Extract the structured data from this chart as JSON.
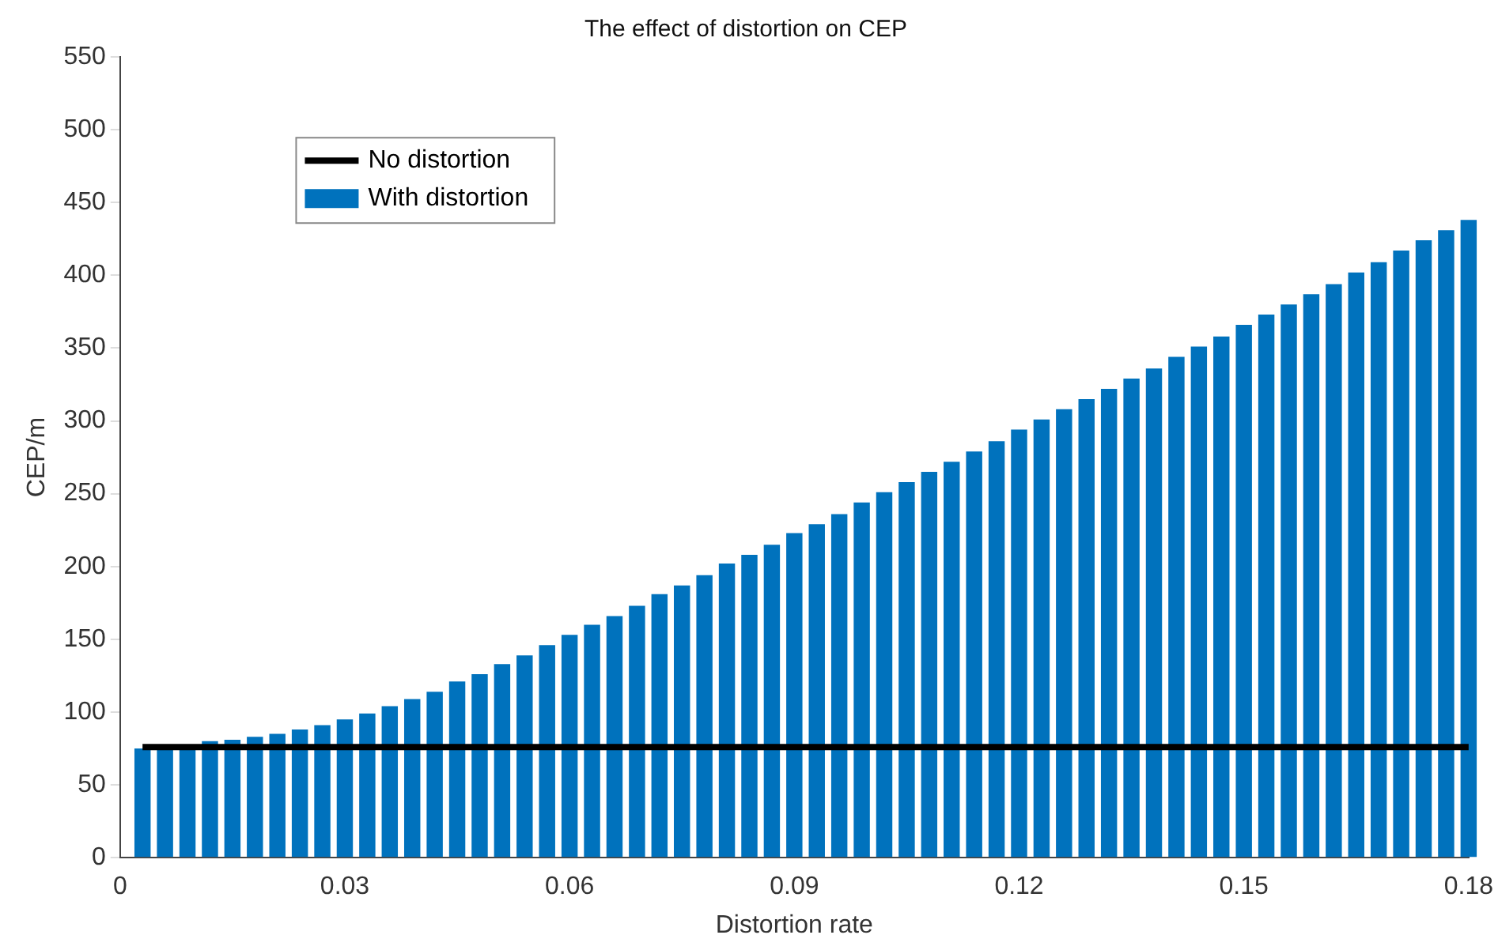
{
  "chart_data": {
    "type": "bar",
    "title": "The effect of distortion on CEP",
    "xlabel": "Distortion rate",
    "ylabel": "CEP/m",
    "x": [
      0.003,
      0.006,
      0.009,
      0.012,
      0.015,
      0.018,
      0.021,
      0.024,
      0.027,
      0.03,
      0.033,
      0.036,
      0.039,
      0.042,
      0.045,
      0.048,
      0.051,
      0.054,
      0.057,
      0.06,
      0.063,
      0.066,
      0.069,
      0.072,
      0.075,
      0.078,
      0.081,
      0.084,
      0.087,
      0.09,
      0.093,
      0.096,
      0.099,
      0.102,
      0.105,
      0.108,
      0.111,
      0.114,
      0.117,
      0.12,
      0.123,
      0.126,
      0.129,
      0.132,
      0.135,
      0.138,
      0.141,
      0.144,
      0.147,
      0.15,
      0.153,
      0.156,
      0.159,
      0.162,
      0.165,
      0.168,
      0.171,
      0.174,
      0.177,
      0.18
    ],
    "series": [
      {
        "name": "No distortion",
        "type": "line",
        "color": "#000000",
        "x": [
          0.003,
          0.18
        ],
        "values": [
          76,
          76
        ]
      },
      {
        "name": "With distortion",
        "color": "#0072bd",
        "values": [
          75,
          76,
          77,
          80,
          81,
          83,
          85,
          88,
          91,
          95,
          99,
          104,
          109,
          114,
          121,
          126,
          133,
          139,
          146,
          153,
          160,
          166,
          173,
          181,
          187,
          194,
          202,
          208,
          215,
          223,
          229,
          236,
          244,
          251,
          258,
          265,
          272,
          279,
          286,
          294,
          301,
          308,
          315,
          322,
          329,
          336,
          344,
          351,
          358,
          366,
          373,
          380,
          387,
          394,
          402,
          409,
          417,
          424,
          431,
          438
        ]
      }
    ],
    "xlim": [
      0,
      0.18
    ],
    "xticks": [
      0,
      0.03,
      0.06,
      0.09,
      0.12,
      0.15,
      0.18
    ],
    "ylim": [
      0,
      550
    ],
    "yticks": [
      0,
      50,
      100,
      150,
      200,
      250,
      300,
      350,
      400,
      450,
      500,
      550
    ],
    "legend": "top left",
    "grid": false,
    "marker": "none"
  }
}
